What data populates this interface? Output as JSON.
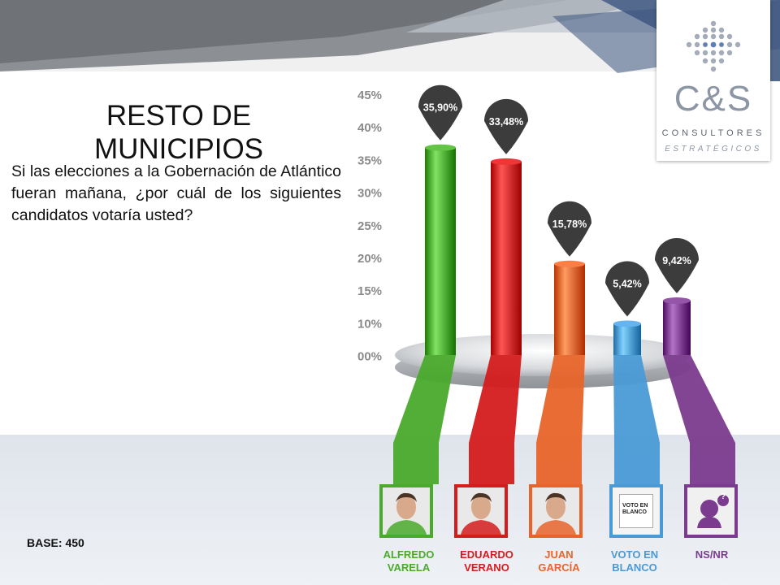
{
  "slide": {
    "title": "RESTO DE MUNICIPIOS",
    "question": "Si las elecciones a la Gobernación de Atlántico fueran mañana, ¿por cuál de los siguientes candidatos votaría usted?",
    "base": "BASE: 450"
  },
  "logo": {
    "main": "C&S",
    "line1": "CONSULTORES",
    "line2": "ESTRATÉGICOS"
  },
  "candidates": [
    {
      "name": "ALFREDO VARELA",
      "image": "photo",
      "color": "#4aaa2c"
    },
    {
      "name": "EDUARDO VERANO",
      "image": "photo",
      "color": "#d41c1c"
    },
    {
      "name": "JUAN GARCÍA",
      "image": "photo",
      "color": "#e8642a"
    },
    {
      "name": "VOTO EN BLANCO",
      "image": "ballot",
      "ballot_text": "VOTO EN BLANCO",
      "color": "#4a9ad6"
    },
    {
      "name": "NS/NR",
      "image": "unknown-person-icon",
      "badge": "?",
      "color": "#7b3b8e"
    }
  ],
  "chart_data": {
    "type": "bar",
    "categories": [
      "ALFREDO VARELA",
      "EDUARDO VERANO",
      "JUAN GARCÍA",
      "VOTO EN BLANCO",
      "NS/NR"
    ],
    "values": [
      35.9,
      33.48,
      15.78,
      5.42,
      9.42
    ],
    "value_labels": [
      "35,90%",
      "33,48%",
      "15,78%",
      "5,42%",
      "9,42%"
    ],
    "colors": [
      "#4aaa2c",
      "#d41c1c",
      "#e8642a",
      "#4a9ad6",
      "#7b3b8e"
    ],
    "yticks": [
      "00%",
      "10%",
      "15%",
      "20%",
      "25%",
      "30%",
      "35%",
      "40%",
      "45%"
    ],
    "ylim": [
      0,
      45
    ],
    "title": "",
    "xlabel": "",
    "ylabel": "",
    "legend": "none"
  }
}
